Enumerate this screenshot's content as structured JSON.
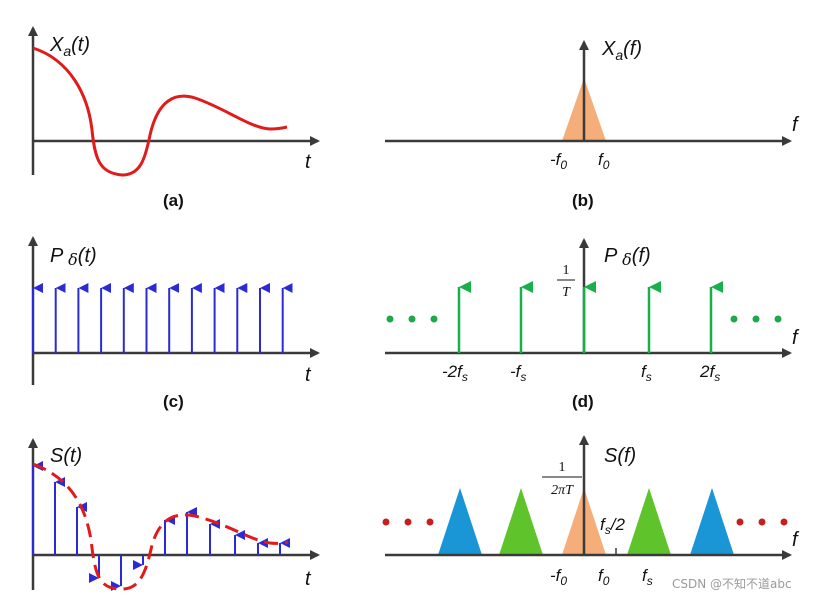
{
  "panels": {
    "a": {
      "ylabel": "X",
      "ysub": "a",
      "yarg": "(t)",
      "xlabel": "t",
      "caption": "(a)"
    },
    "b": {
      "ylabel": "X",
      "ysub": "a",
      "yarg": "(f)",
      "xlabel": "f",
      "caption": "(b)",
      "neg_f0": "-f",
      "pos_f0": "f",
      "f0_sub": "0"
    },
    "c": {
      "ylabel": "P ",
      "ydelta": "δ",
      "yarg": "(t)",
      "xlabel": "t",
      "caption": "(c)"
    },
    "d": {
      "ylabel": "P ",
      "ydelta": "δ",
      "yarg": "(f)",
      "xlabel": "f",
      "caption": "(d)",
      "amp_num": "1",
      "amp_den": "T",
      "tick_m2": "-2f",
      "tick_m1": "-f",
      "tick_p1": "f",
      "tick_p2": "2f",
      "tick_sub": "s"
    },
    "e": {
      "ylabel": "S(t)",
      "xlabel": "t"
    },
    "f": {
      "ylabel": "S(f)",
      "xlabel": "f",
      "amp_num": "1",
      "amp_den": "2πT",
      "half": "f",
      "half_sub": "s",
      "half_rest": "/2",
      "neg_f0": "-f",
      "pos_f0": "f",
      "f0_sub": "0",
      "fs": "f",
      "fs_sub": "s"
    }
  },
  "watermark": "CSDN @不知不道abc",
  "colors": {
    "axis": "#3a3a3a",
    "signal": "#e11a1a",
    "impulse": "#2b2bd6",
    "spectral": "#18b04a",
    "peach": "#f5ad7a",
    "green_tri": "#5fc42c",
    "blue_tri": "#1a95d6",
    "dots_green": "#1ea84a",
    "dots_red": "#c81e1e"
  }
}
